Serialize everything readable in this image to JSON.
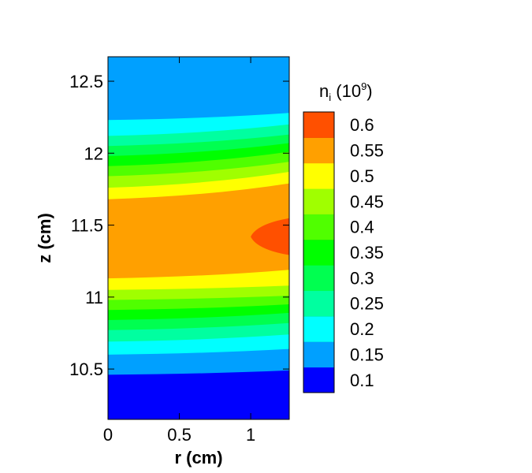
{
  "chart_data": {
    "type": "heatmap",
    "subtype": "filled-contour",
    "title": "",
    "xlabel": "r (cm)",
    "ylabel": "z (cm)",
    "xlim": [
      0,
      1.27
    ],
    "ylim": [
      10.15,
      12.67
    ],
    "x_ticks": [
      0,
      0.5,
      1
    ],
    "x_tick_labels": [
      "0",
      "0.5",
      "1"
    ],
    "y_ticks": [
      10.5,
      11,
      11.5,
      12,
      12.5
    ],
    "y_tick_labels": [
      "10.5",
      "11",
      "11.5",
      "12",
      "12.5"
    ],
    "grid": false,
    "colorbar": {
      "title_main": "n",
      "title_sub": "i",
      "title_rest": " (10",
      "title_sup": "9",
      "title_close": ")",
      "levels": [
        0.1,
        0.15,
        0.2,
        0.25,
        0.3,
        0.35,
        0.4,
        0.45,
        0.5,
        0.55,
        0.6
      ],
      "labels": [
        "0.1",
        "0.15",
        "0.2",
        "0.25",
        "0.3",
        "0.35",
        "0.4",
        "0.45",
        "0.5",
        "0.55",
        "0.6"
      ],
      "colors": [
        "#0000ff",
        "#0050ff",
        "#00a0ff",
        "#00ffff",
        "#00ffa0",
        "#00ff50",
        "#00ff00",
        "#50ff00",
        "#a0ff00",
        "#ffff00",
        "#ffa000",
        "#ff5000",
        "#ff0000"
      ],
      "position": "right"
    },
    "level_curves_z": [
      {
        "level": 0.15,
        "z_at_r0": 10.46,
        "z_at_rmax": 10.49
      },
      {
        "level": 0.2,
        "z_at_r0": 10.6,
        "z_at_rmax": 10.64
      },
      {
        "level": 0.25,
        "z_at_r0": 10.69,
        "z_at_rmax": 10.74
      },
      {
        "level": 0.3,
        "z_at_r0": 10.77,
        "z_at_rmax": 10.82
      },
      {
        "level": 0.35,
        "z_at_r0": 10.84,
        "z_at_rmax": 10.89
      },
      {
        "level": 0.4,
        "z_at_r0": 10.91,
        "z_at_rmax": 10.95
      },
      {
        "level": 0.45,
        "z_at_r0": 10.98,
        "z_at_rmax": 11.01
      },
      {
        "level": 0.5,
        "z_at_r0": 11.05,
        "z_at_rmax": 11.08
      },
      {
        "level": 0.55,
        "z_at_r0": 11.13,
        "z_at_rmax": 11.19
      },
      {
        "level": 0.55,
        "z_at_r0": 11.59,
        "z_at_rmax": 11.68
      },
      {
        "level": 0.5,
        "z_at_r0": 11.68,
        "z_at_rmax": 11.79
      },
      {
        "level": 0.45,
        "z_at_r0": 11.76,
        "z_at_rmax": 11.87
      },
      {
        "level": 0.4,
        "z_at_r0": 11.84,
        "z_at_rmax": 11.94
      },
      {
        "level": 0.35,
        "z_at_r0": 11.91,
        "z_at_rmax": 12.01
      },
      {
        "level": 0.3,
        "z_at_r0": 11.98,
        "z_at_rmax": 12.07
      },
      {
        "level": 0.25,
        "z_at_r0": 12.05,
        "z_at_rmax": 12.13
      },
      {
        "level": 0.2,
        "z_at_r0": 12.12,
        "z_at_rmax": 12.2
      },
      {
        "level": 0.15,
        "z_at_r0": 12.23,
        "z_at_rmax": 12.28
      }
    ],
    "peak_region": {
      "level": 0.6,
      "r_start": 1.0,
      "z_center": 11.42,
      "z_halfwidth_at_rmax": 0.13
    }
  }
}
